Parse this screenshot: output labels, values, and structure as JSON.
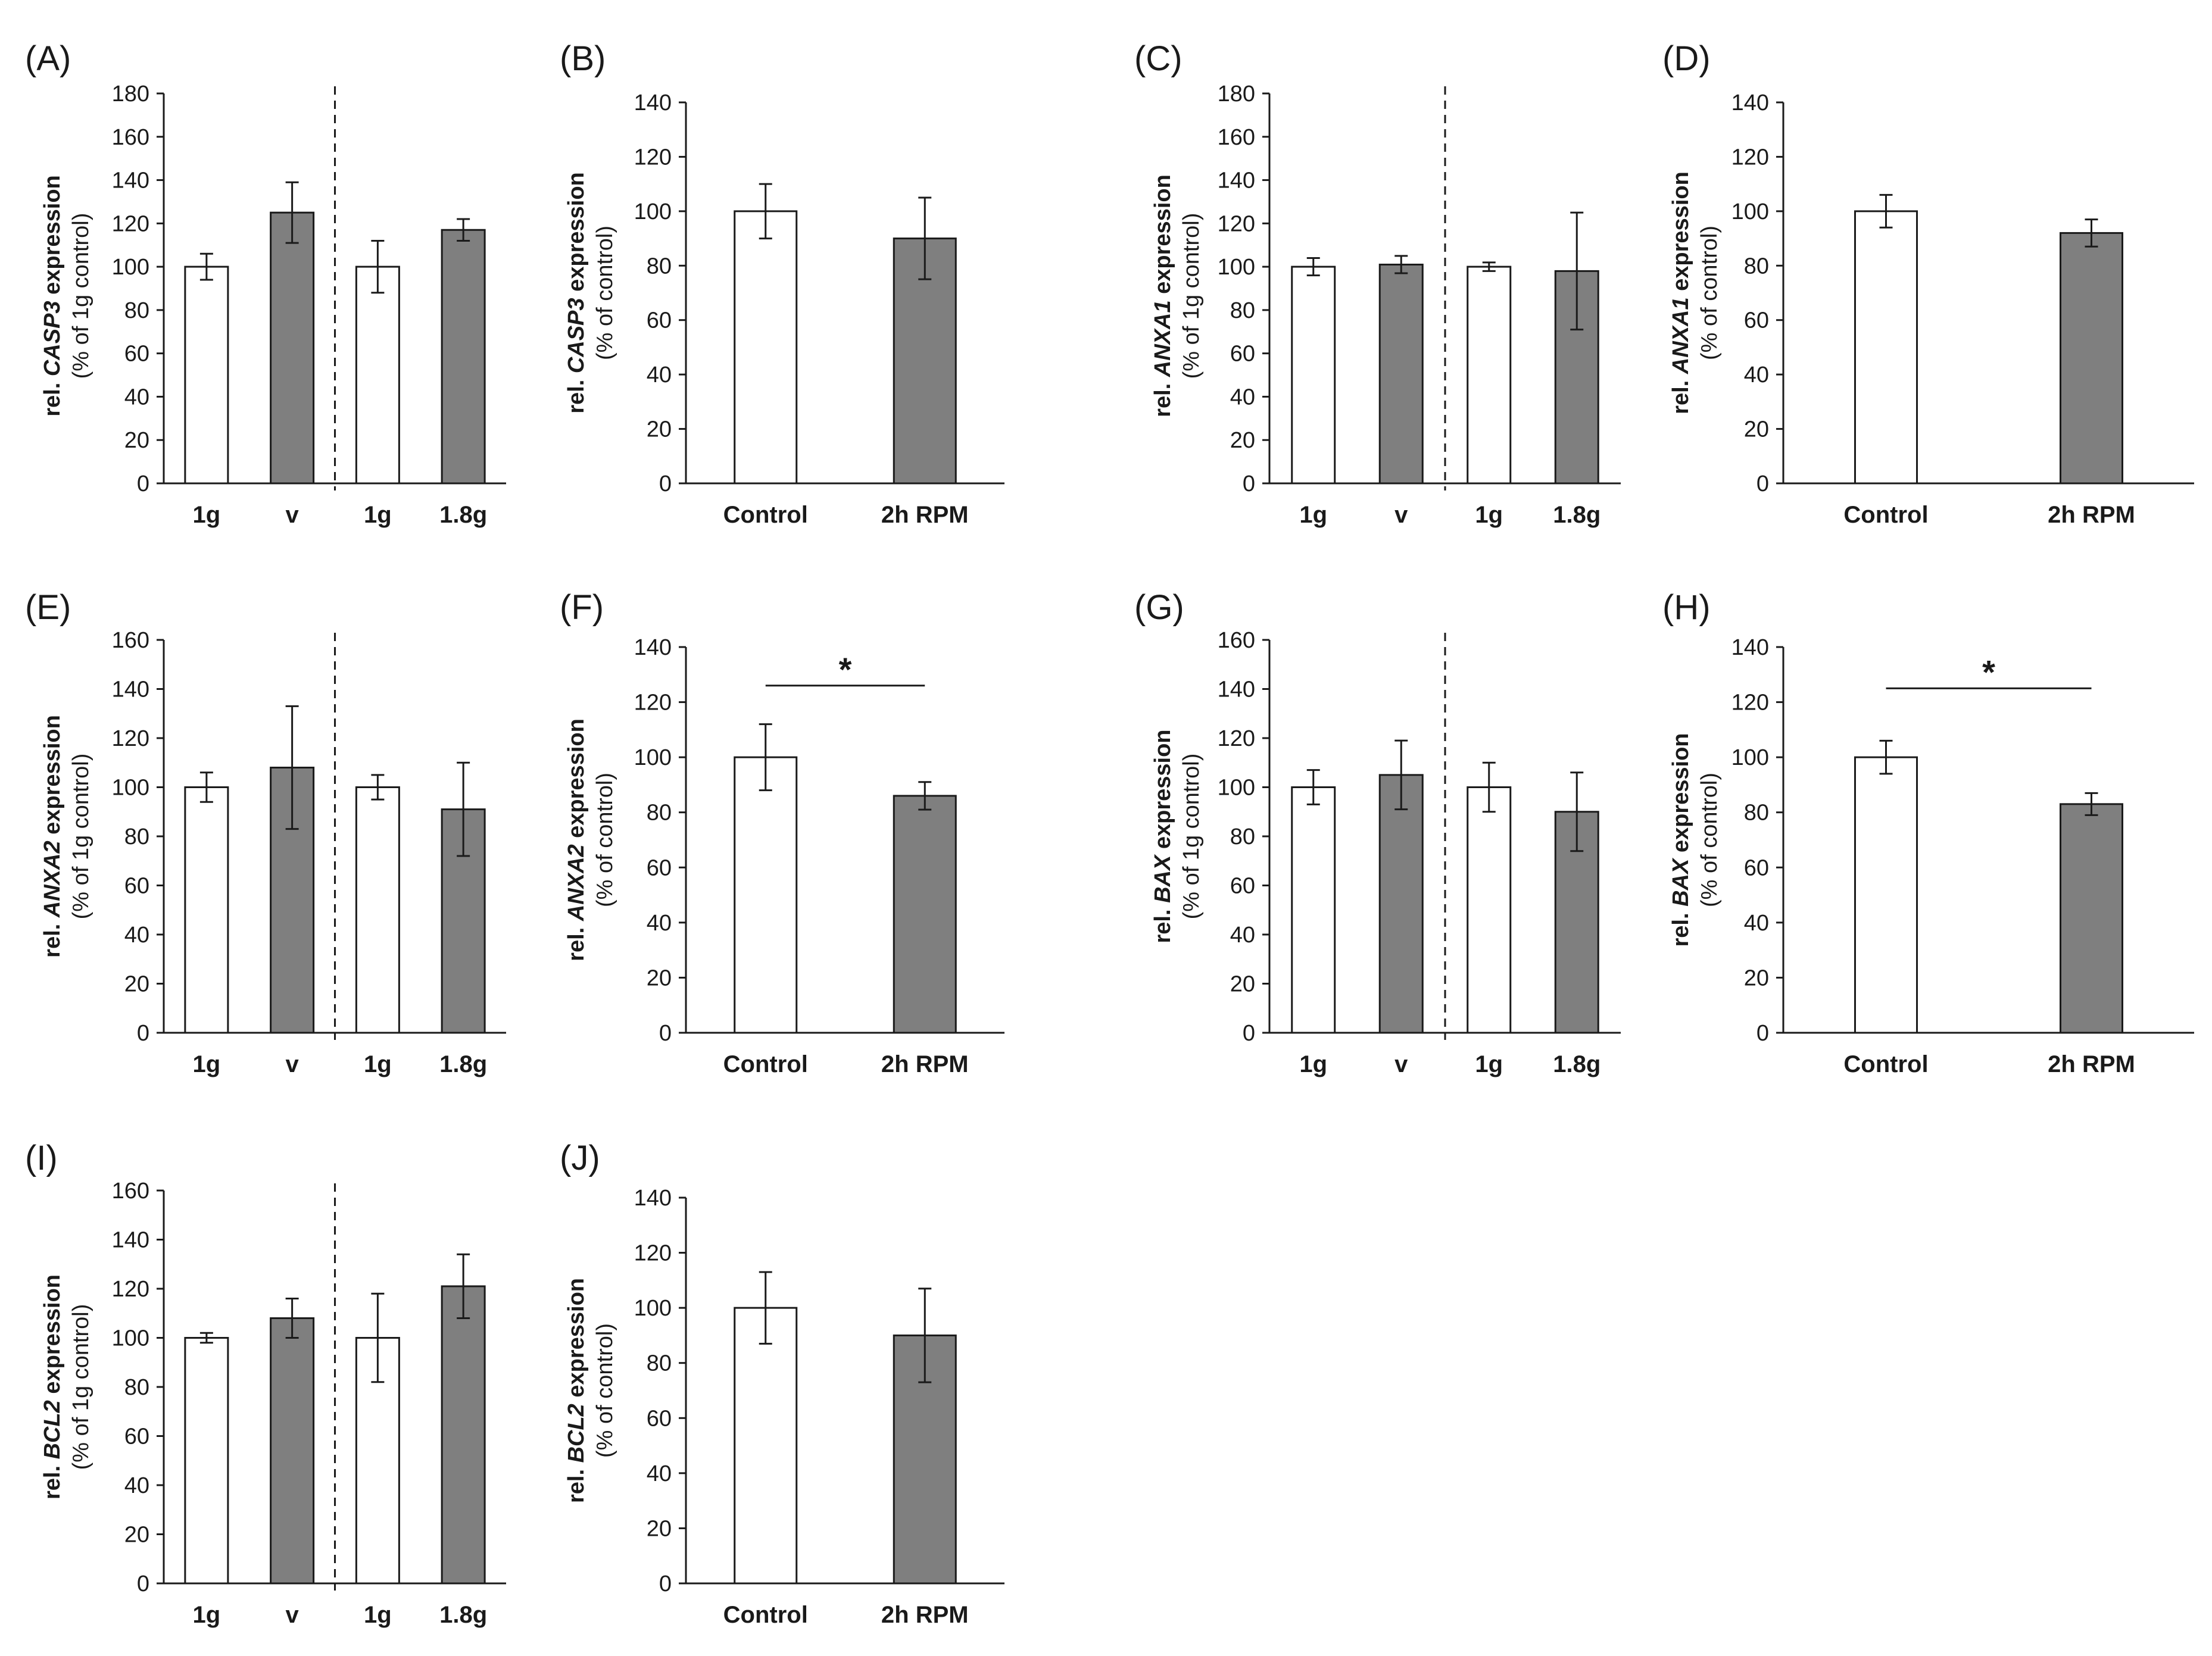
{
  "colors": {
    "control_bar": "#ffffff",
    "treated_bar": "#7f7f7f",
    "stroke": "#1a1a1a"
  },
  "chart_data": [
    {
      "id": "A",
      "type": "bar",
      "panel_label": "(A)",
      "gene": "CASP3",
      "ylabel_prefix": "rel. ",
      "ylabel_suffix": " expression",
      "ylabel_line2": "(% of 1g control)",
      "yticks": [
        "0",
        "20",
        "40",
        "60",
        "80",
        "100",
        "120",
        "140",
        "160",
        "180"
      ],
      "ylim": [
        0,
        180
      ],
      "categories": [
        "1g",
        "v",
        "1g",
        "1.8g"
      ],
      "values": [
        100,
        125,
        100,
        117
      ],
      "errors": [
        6,
        14,
        12,
        5
      ],
      "fills": [
        "white",
        "gray",
        "white",
        "gray"
      ],
      "divider": true,
      "significance": null
    },
    {
      "id": "B",
      "type": "bar",
      "panel_label": "(B)",
      "gene": "CASP3",
      "ylabel_prefix": "rel. ",
      "ylabel_suffix": " expression",
      "ylabel_line2": "(% of control)",
      "yticks": [
        "0",
        "20",
        "40",
        "60",
        "80",
        "100",
        "120",
        "140"
      ],
      "ylim": [
        0,
        140
      ],
      "categories": [
        "Control",
        "2h RPM"
      ],
      "values": [
        100,
        90
      ],
      "errors": [
        10,
        15
      ],
      "fills": [
        "white",
        "gray"
      ],
      "divider": false,
      "significance": null
    },
    {
      "id": "C",
      "type": "bar",
      "panel_label": "(C)",
      "gene": "ANXA1",
      "ylabel_prefix": "rel. ",
      "ylabel_suffix": " expression",
      "ylabel_line2": "(% of 1g control)",
      "yticks": [
        "0",
        "20",
        "40",
        "60",
        "80",
        "100",
        "120",
        "140",
        "160",
        "180"
      ],
      "ylim": [
        0,
        180
      ],
      "categories": [
        "1g",
        "v",
        "1g",
        "1.8g"
      ],
      "values": [
        100,
        101,
        100,
        98
      ],
      "errors": [
        4,
        4,
        2,
        27
      ],
      "fills": [
        "white",
        "gray",
        "white",
        "gray"
      ],
      "divider": true,
      "significance": null
    },
    {
      "id": "D",
      "type": "bar",
      "panel_label": "(D)",
      "gene": "ANXA1",
      "ylabel_prefix": "rel. ",
      "ylabel_suffix": " expression",
      "ylabel_line2": "(% of control)",
      "yticks": [
        "0",
        "20",
        "40",
        "60",
        "80",
        "100",
        "120",
        "140"
      ],
      "ylim": [
        0,
        140
      ],
      "categories": [
        "Control",
        "2h RPM"
      ],
      "values": [
        100,
        92
      ],
      "errors": [
        6,
        5
      ],
      "fills": [
        "white",
        "gray"
      ],
      "divider": false,
      "significance": null
    },
    {
      "id": "E",
      "type": "bar",
      "panel_label": "(E)",
      "gene": "ANXA2",
      "ylabel_prefix": "rel. ",
      "ylabel_suffix": " expression",
      "ylabel_line2": "(% of 1g control)",
      "yticks": [
        "0",
        "20",
        "40",
        "60",
        "80",
        "100",
        "120",
        "140",
        "160"
      ],
      "ylim": [
        0,
        160
      ],
      "categories": [
        "1g",
        "v",
        "1g",
        "1.8g"
      ],
      "values": [
        100,
        108,
        100,
        91
      ],
      "errors": [
        6,
        25,
        5,
        19
      ],
      "fills": [
        "white",
        "gray",
        "white",
        "gray"
      ],
      "divider": true,
      "significance": null
    },
    {
      "id": "F",
      "type": "bar",
      "panel_label": "(F)",
      "gene": "ANXA2",
      "ylabel_prefix": "rel. ",
      "ylabel_suffix": " expression",
      "ylabel_line2": "(% of control)",
      "yticks": [
        "0",
        "20",
        "40",
        "60",
        "80",
        "100",
        "120",
        "140"
      ],
      "ylim": [
        0,
        140
      ],
      "categories": [
        "Control",
        "2h RPM"
      ],
      "values": [
        100,
        86
      ],
      "errors": [
        12,
        5
      ],
      "fills": [
        "white",
        "gray"
      ],
      "divider": false,
      "significance": {
        "marker": "*",
        "line_y": 126
      }
    },
    {
      "id": "G",
      "type": "bar",
      "panel_label": "(G)",
      "gene": "BAX",
      "ylabel_prefix": "rel. ",
      "ylabel_suffix": " expression",
      "ylabel_line2": "(% of 1g control)",
      "yticks": [
        "0",
        "20",
        "40",
        "60",
        "80",
        "100",
        "120",
        "140",
        "160"
      ],
      "ylim": [
        0,
        160
      ],
      "categories": [
        "1g",
        "v",
        "1g",
        "1.8g"
      ],
      "values": [
        100,
        105,
        100,
        90
      ],
      "errors": [
        7,
        14,
        10,
        16
      ],
      "fills": [
        "white",
        "gray",
        "white",
        "gray"
      ],
      "divider": true,
      "significance": null
    },
    {
      "id": "H",
      "type": "bar",
      "panel_label": "(H)",
      "gene": "BAX",
      "ylabel_prefix": "rel. ",
      "ylabel_suffix": " expression",
      "ylabel_line2": "(% of control)",
      "yticks": [
        "0",
        "20",
        "40",
        "60",
        "80",
        "100",
        "120",
        "140"
      ],
      "ylim": [
        0,
        140
      ],
      "categories": [
        "Control",
        "2h RPM"
      ],
      "values": [
        100,
        83
      ],
      "errors": [
        6,
        4
      ],
      "fills": [
        "white",
        "gray"
      ],
      "divider": false,
      "significance": {
        "marker": "*",
        "line_y": 125
      }
    },
    {
      "id": "I",
      "type": "bar",
      "panel_label": "(I)",
      "gene": "BCL2",
      "ylabel_prefix": "rel. ",
      "ylabel_suffix": " expression",
      "ylabel_line2": "(% of 1g control)",
      "yticks": [
        "0",
        "20",
        "40",
        "60",
        "80",
        "100",
        "120",
        "140",
        "160"
      ],
      "ylim": [
        0,
        160
      ],
      "categories": [
        "1g",
        "v",
        "1g",
        "1.8g"
      ],
      "values": [
        100,
        108,
        100,
        121
      ],
      "errors": [
        2,
        8,
        18,
        13
      ],
      "fills": [
        "white",
        "gray",
        "white",
        "gray"
      ],
      "divider": true,
      "significance": null
    },
    {
      "id": "J",
      "type": "bar",
      "panel_label": "(J)",
      "gene": "BCL2",
      "ylabel_prefix": "rel. ",
      "ylabel_suffix": " expression",
      "ylabel_line2": "(% of control)",
      "yticks": [
        "0",
        "20",
        "40",
        "60",
        "80",
        "100",
        "120",
        "140"
      ],
      "ylim": [
        0,
        140
      ],
      "categories": [
        "Control",
        "2h RPM"
      ],
      "values": [
        100,
        90
      ],
      "errors": [
        13,
        17
      ],
      "fills": [
        "white",
        "gray"
      ],
      "divider": false,
      "significance": null
    }
  ]
}
